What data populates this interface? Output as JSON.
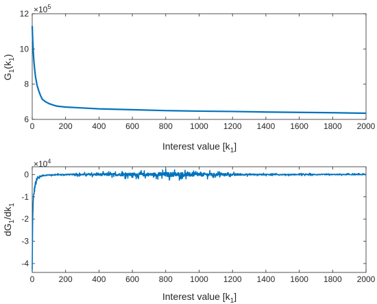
{
  "colors": {
    "series": "#0072BD",
    "axis": "#262626"
  },
  "chart_data": [
    {
      "type": "line",
      "xlabel_main": "Interest value [k",
      "xlabel_sub": "1",
      "xlabel_end": "]",
      "ylabel_pre": "G",
      "ylabel_sub1": "1",
      "ylabel_mid": "(k",
      "ylabel_sub2": "1",
      "ylabel_end": ")",
      "xlim": [
        0,
        2000
      ],
      "ylim": [
        6,
        12
      ],
      "x_ticks": [
        "0",
        "200",
        "400",
        "600",
        "800",
        "1000",
        "1200",
        "1400",
        "1600",
        "1800",
        "2000"
      ],
      "y_ticks": [
        "6",
        "8",
        "10",
        "12"
      ],
      "y_multiplier_base": "×10",
      "y_multiplier_exp": "5",
      "series": [
        {
          "x": [
            0,
            3,
            6,
            10,
            15,
            20,
            30,
            40,
            50,
            60,
            80,
            100,
            130,
            150,
            200,
            300,
            400,
            600,
            800,
            1000,
            1200,
            1400,
            1600,
            1800,
            2000
          ],
          "y": [
            11.3,
            10.5,
            9.9,
            9.3,
            8.8,
            8.4,
            7.9,
            7.6,
            7.35,
            7.15,
            7.0,
            6.9,
            6.8,
            6.75,
            6.7,
            6.65,
            6.6,
            6.55,
            6.5,
            6.47,
            6.45,
            6.42,
            6.4,
            6.38,
            6.35
          ]
        }
      ]
    },
    {
      "type": "line",
      "xlabel_main": "Interest value [k",
      "xlabel_sub": "1",
      "xlabel_end": "]",
      "ylabel_pre": "dG",
      "ylabel_sub1": "1",
      "ylabel_mid": "/dk",
      "ylabel_sub2": "1",
      "ylabel_end": "",
      "xlim": [
        0,
        2000
      ],
      "ylim": [
        -4.4,
        0.35
      ],
      "x_ticks": [
        "0",
        "200",
        "400",
        "600",
        "800",
        "1000",
        "1200",
        "1400",
        "1600",
        "1800",
        "2000"
      ],
      "y_ticks": [
        "-4",
        "-3",
        "-2",
        "-1",
        "0"
      ],
      "y_multiplier_base": "×10",
      "y_multiplier_exp": "4",
      "series": [
        {
          "x": [
            0,
            1,
            2,
            3,
            5,
            8,
            12,
            16,
            20,
            25,
            30,
            40,
            50,
            60,
            80,
            100,
            150,
            200,
            300,
            400,
            500,
            600,
            700,
            800,
            900,
            1000,
            1100,
            1200,
            1300,
            1400,
            1500,
            1600,
            1700,
            1800,
            1900,
            2000
          ],
          "y": [
            -4.3,
            -3.5,
            -2.6,
            -2.0,
            -1.4,
            -1.0,
            -0.75,
            -0.55,
            -0.42,
            -0.3,
            -0.22,
            -0.12,
            -0.08,
            -0.05,
            -0.03,
            -0.02,
            -0.01,
            0,
            0,
            0,
            0,
            0,
            0,
            0,
            0,
            0,
            0,
            0,
            0,
            0,
            0,
            0,
            0,
            0,
            0,
            0
          ],
          "noise_amplitude": [
            0.05,
            0.1,
            0.15,
            0.25,
            0.35,
            0.4,
            0.45,
            0.45,
            0.4,
            0.35,
            0.3,
            0.15,
            0.1,
            0.08,
            0.06,
            0.06,
            0.06,
            0.06,
            0.1,
            0.14,
            0.16,
            0.2,
            0.2,
            0.28,
            0.28,
            0.24,
            0.16,
            0.12,
            0.08,
            0.06,
            0.06,
            0.06,
            0.06,
            0.05,
            0.05,
            0.05
          ]
        }
      ]
    }
  ]
}
